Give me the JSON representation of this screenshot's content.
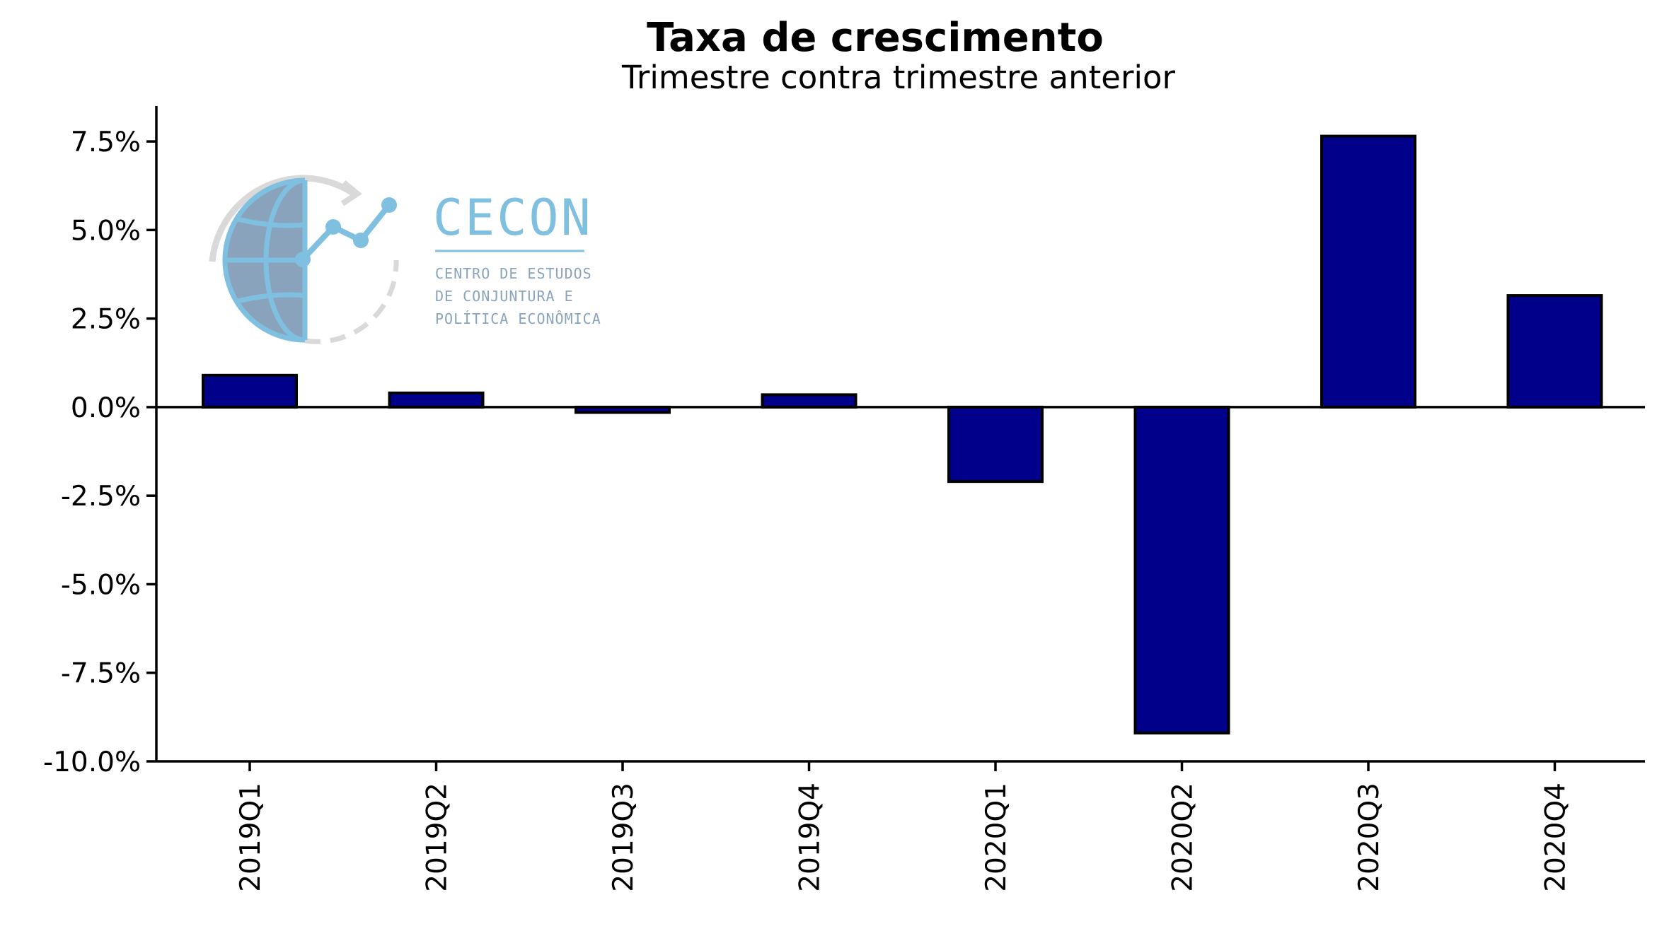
{
  "chart_data": {
    "type": "bar",
    "title": "Taxa de crescimento",
    "subtitle": "Trimestre contra trimestre anterior",
    "xlabel": "",
    "ylabel": "",
    "categories": [
      "2019Q1",
      "2019Q2",
      "2019Q3",
      "2019Q4",
      "2020Q1",
      "2020Q2",
      "2020Q3",
      "2020Q4"
    ],
    "values": [
      0.9,
      0.4,
      -0.15,
      0.35,
      -2.1,
      -9.2,
      7.65,
      3.15
    ],
    "ylim": [
      -10.0,
      8.5
    ],
    "yticks": [
      7.5,
      5.0,
      2.5,
      0.0,
      -2.5,
      -5.0,
      -7.5,
      -10.0
    ],
    "ytick_labels": [
      "7.5%",
      "5.0%",
      "2.5%",
      "0.0%",
      "-2.5%",
      "-5.0%",
      "-7.5%",
      "-10.0%"
    ],
    "grid": false,
    "legend": "none",
    "bar_color": "#00008b",
    "bar_edge_color": "#000000",
    "zero_line": true
  },
  "logo": {
    "name": "CECON",
    "lines": [
      "CENTRO DE ESTUDOS",
      "DE CONJUNTURA E",
      "POLÍTICA ECONÔMICA"
    ],
    "primary_color": "#7fbfe0",
    "globe_color": "#8aa3bd",
    "arc_color": "#d9d9d9",
    "sub_color": "#8aa3bd"
  }
}
